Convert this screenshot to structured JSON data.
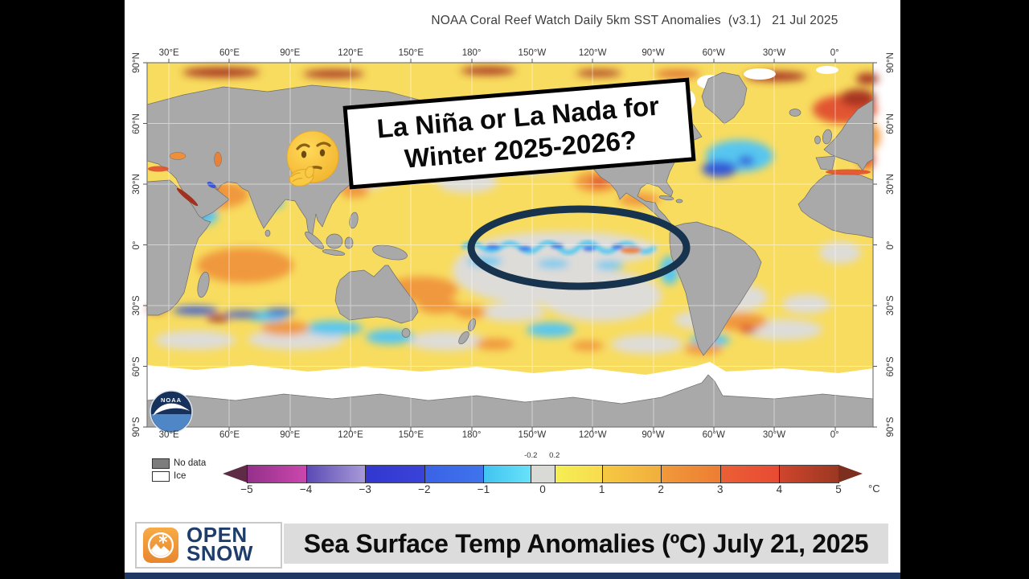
{
  "window": {
    "outer_bg": "#000000",
    "content_bg": "#ffffff",
    "bottom_strip_color": "#1f3864"
  },
  "figure": {
    "title": "NOAA Coral Reef Watch Daily 5km SST Anomalies  (v3.1)   21 Jul 2025",
    "top_axis": [
      "30°E",
      "60°E",
      "90°E",
      "120°E",
      "150°E",
      "180°",
      "150°W",
      "120°W",
      "90°W",
      "60°W",
      "30°W",
      "0°"
    ],
    "bottom_axis": [
      "30°E",
      "60°E",
      "90°E",
      "120°E",
      "150°E",
      "180°",
      "150°W",
      "120°W",
      "90°W",
      "60°W",
      "30°W",
      "0°"
    ],
    "left_axis": [
      "90°N",
      "60°N",
      "30°N",
      "0°",
      "30°S",
      "60°S",
      "90°S"
    ],
    "right_axis": [
      "90°N",
      "60°N",
      "30°N",
      "0°",
      "30°S",
      "60°S",
      "90°S"
    ],
    "colors": {
      "land": "#a9a9a9",
      "ocean_base": "#f8dc5f",
      "grid": "#ffffff",
      "frame": "#777777"
    }
  },
  "legend": {
    "no_data": "No data",
    "ice": "Ice",
    "unit": "°C",
    "ticks": [
      "−5",
      "−4",
      "−3",
      "−2",
      "−1",
      "0",
      "1",
      "2",
      "3",
      "4",
      "5"
    ],
    "sub_ticks": [
      "-0.2",
      "0.2"
    ],
    "left_arrow": "#5e2c44",
    "right_arrow": "#7c2f1f",
    "segments": [
      {
        "from": -5,
        "to": -4,
        "c1": "#93308a",
        "c2": "#cb47ad"
      },
      {
        "from": -4,
        "to": -3,
        "c1": "#5a49b4",
        "c2": "#a89ad9"
      },
      {
        "from": -3,
        "to": -2,
        "c1": "#3137cf",
        "c2": "#3a43d9"
      },
      {
        "from": -2,
        "to": -1,
        "c1": "#3a62e6",
        "c2": "#3f74ec"
      },
      {
        "from": -1,
        "to": -0.2,
        "c1": "#41c3f1",
        "c2": "#67e2f9"
      },
      {
        "from": -0.2,
        "to": 0.2,
        "c1": "#d9d9d6",
        "c2": "#d9d9d6"
      },
      {
        "from": 0.2,
        "to": 1,
        "c1": "#f5ee54",
        "c2": "#f8dc4e"
      },
      {
        "from": 1,
        "to": 2,
        "c1": "#f6c942",
        "c2": "#f2ae3d"
      },
      {
        "from": 2,
        "to": 3,
        "c1": "#f09a3a",
        "c2": "#ed7d33"
      },
      {
        "from": 3,
        "to": 4,
        "c1": "#ea6036",
        "c2": "#e84a33"
      },
      {
        "from": 4,
        "to": 5,
        "c1": "#d0452c",
        "c2": "#9c3722"
      }
    ]
  },
  "overlay": {
    "question_line1": "La Niña or La Nada for",
    "question_line2": "Winter 2025-2026?",
    "emoji": "thinking-face",
    "ellipse_color": "#17334e"
  },
  "noaa_logo": {
    "text": "NOAA"
  },
  "footer": {
    "brand_top": "OPEN",
    "brand_bottom": "SNOW",
    "caption": "Sea Surface Temp Anomalies (ºC) July 21, 2025"
  }
}
